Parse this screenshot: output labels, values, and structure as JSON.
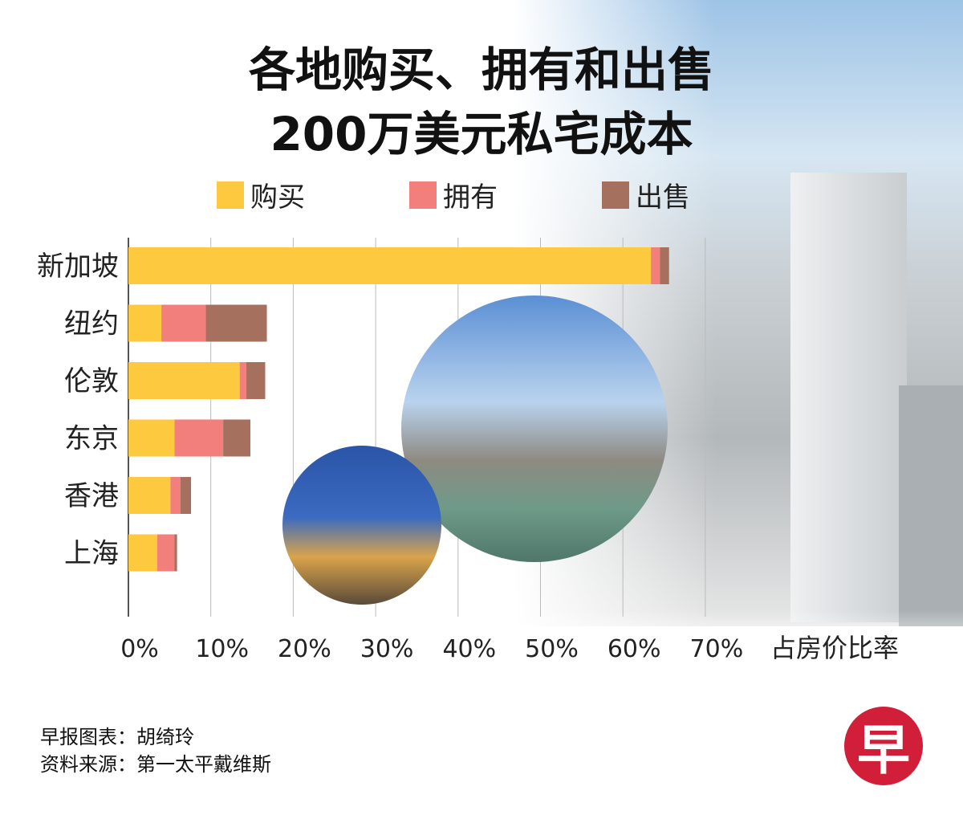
{
  "title_line1": "各地购买、拥有和出售",
  "title_line2": "200万美元私宅成本",
  "logo_text": "早",
  "credits": [
    "早报图表：胡绮玲",
    "资料来源：第一太平戴维斯"
  ],
  "chart_data": {
    "type": "bar",
    "orientation": "horizontal",
    "stacked": true,
    "title": "各地购买、拥有和出售200万美元私宅成本",
    "xlabel": "占房价比率",
    "xlim": [
      0,
      70
    ],
    "xticks": [
      "0%",
      "10%",
      "20%",
      "30%",
      "40%",
      "50%",
      "60%",
      "70%"
    ],
    "grid": true,
    "legend_position": "top",
    "categories": [
      "新加坡",
      "纽约",
      "伦敦",
      "东京",
      "香港",
      "上海"
    ],
    "series": [
      {
        "name": "购买",
        "color": "#FDC93F",
        "values": [
          63.4,
          4.0,
          13.5,
          5.6,
          5.1,
          3.5
        ]
      },
      {
        "name": "拥有",
        "color": "#F27F7B",
        "values": [
          1.1,
          5.4,
          0.8,
          5.9,
          1.2,
          2.1
        ]
      },
      {
        "name": "出售",
        "color": "#A5705E",
        "values": [
          1.1,
          7.4,
          2.3,
          3.3,
          1.3,
          0.3
        ]
      }
    ]
  }
}
